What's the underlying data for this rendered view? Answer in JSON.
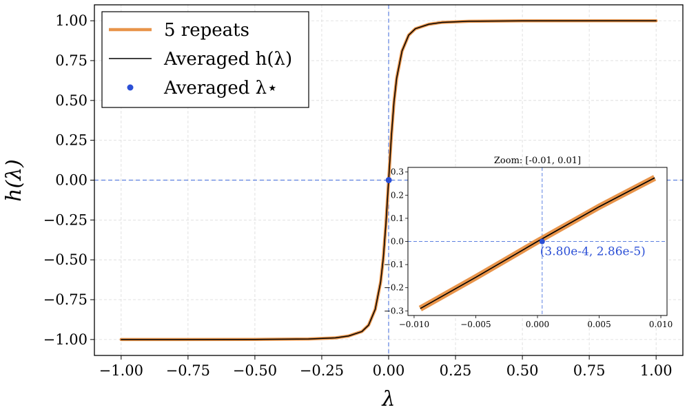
{
  "chart_data": [
    {
      "type": "line",
      "title": "",
      "xlabel": "λ",
      "ylabel": "h(λ)",
      "xlim": [
        -1.1,
        1.1
      ],
      "ylim": [
        -1.1,
        1.1
      ],
      "xticks": [
        -1.0,
        -0.75,
        -0.5,
        -0.25,
        0.0,
        0.25,
        0.5,
        0.75,
        1.0
      ],
      "xtick_labels": [
        "−1.00",
        "−0.75",
        "−0.50",
        "−0.25",
        "0.00",
        "0.25",
        "0.50",
        "0.75",
        "1.00"
      ],
      "yticks": [
        -1.0,
        -0.75,
        -0.5,
        -0.25,
        0.0,
        0.25,
        0.5,
        0.75,
        1.0
      ],
      "ytick_labels": [
        "−1.00",
        "−0.75",
        "−0.50",
        "−0.25",
        "0.00",
        "0.25",
        "0.50",
        "0.75",
        "1.00"
      ],
      "grid": true,
      "legend_position": "top-left",
      "reference_lines": {
        "x": 0.0,
        "y": 0.0
      },
      "series": [
        {
          "name": "5 repeats",
          "color": "#e8944a",
          "x": [
            -1.0,
            -0.5,
            -0.3,
            -0.2,
            -0.15,
            -0.1,
            -0.075,
            -0.05,
            -0.03,
            -0.02,
            -0.01,
            0.0,
            0.01,
            0.02,
            0.03,
            0.05,
            0.075,
            0.1,
            0.15,
            0.2,
            0.3,
            0.5,
            1.0
          ],
          "y": [
            -1.0,
            -0.9996,
            -0.997,
            -0.99,
            -0.978,
            -0.95,
            -0.91,
            -0.81,
            -0.64,
            -0.49,
            -0.27,
            0.0,
            0.27,
            0.49,
            0.64,
            0.81,
            0.91,
            0.95,
            0.978,
            0.99,
            0.997,
            0.9996,
            1.0
          ]
        },
        {
          "name": "Averaged h(λ)",
          "color": "#000000",
          "x": [
            -1.0,
            -0.5,
            -0.3,
            -0.2,
            -0.15,
            -0.1,
            -0.075,
            -0.05,
            -0.03,
            -0.02,
            -0.01,
            0.0,
            0.01,
            0.02,
            0.03,
            0.05,
            0.075,
            0.1,
            0.15,
            0.2,
            0.3,
            0.5,
            1.0
          ],
          "y": [
            -1.0,
            -0.9996,
            -0.997,
            -0.99,
            -0.978,
            -0.95,
            -0.91,
            -0.81,
            -0.64,
            -0.49,
            -0.27,
            0.0,
            0.27,
            0.49,
            0.64,
            0.81,
            0.91,
            0.95,
            0.978,
            0.99,
            0.997,
            0.9996,
            1.0
          ]
        },
        {
          "name": "Averaged λ⋆",
          "color": "#2b4fd6",
          "type": "scatter",
          "x": [
            0.00038
          ],
          "y": [
            2.86e-05
          ]
        }
      ]
    },
    {
      "type": "line",
      "title": "Zoom: [-0.01, 0.01]",
      "xlim": [
        -0.0105,
        0.0105
      ],
      "ylim": [
        -0.32,
        0.32
      ],
      "xticks": [
        -0.01,
        -0.005,
        0.0,
        0.005,
        0.01
      ],
      "xtick_labels": [
        "−0.010",
        "−0.005",
        "0.000",
        "0.005",
        "0.010"
      ],
      "yticks": [
        -0.3,
        -0.2,
        -0.1,
        0.0,
        0.1,
        0.2,
        0.3
      ],
      "ytick_labels": [
        "−0.3",
        "−0.2",
        "−0.1",
        "0.0",
        "0.1",
        "0.2",
        "0.3"
      ],
      "reference_lines": {
        "x": 0.00038,
        "y": 0.0
      },
      "annotation": "(3.80e-4, 2.86e-5)",
      "series": [
        {
          "name": "5 repeats",
          "color": "#e8944a",
          "x": [
            -0.0095,
            -0.005,
            0.0,
            0.005,
            0.0095
          ],
          "y": [
            -0.29,
            -0.155,
            0.0,
            0.15,
            0.275
          ]
        },
        {
          "name": "Averaged h(λ)",
          "color": "#000000",
          "x": [
            -0.0095,
            -0.005,
            0.0,
            0.005,
            0.0095
          ],
          "y": [
            -0.29,
            -0.155,
            0.0,
            0.15,
            0.275
          ]
        },
        {
          "name": "Averaged λ⋆",
          "color": "#2b4fd6",
          "type": "scatter",
          "x": [
            0.00038
          ],
          "y": [
            2.86e-05
          ]
        }
      ]
    }
  ],
  "legend": {
    "items": [
      {
        "label": "5 repeats",
        "kind": "line",
        "color": "#e8944a"
      },
      {
        "label": "Averaged h(λ)",
        "kind": "line",
        "color": "#000000"
      },
      {
        "label": "Averaged λ⋆",
        "kind": "dot",
        "color": "#2b4fd6"
      }
    ]
  }
}
